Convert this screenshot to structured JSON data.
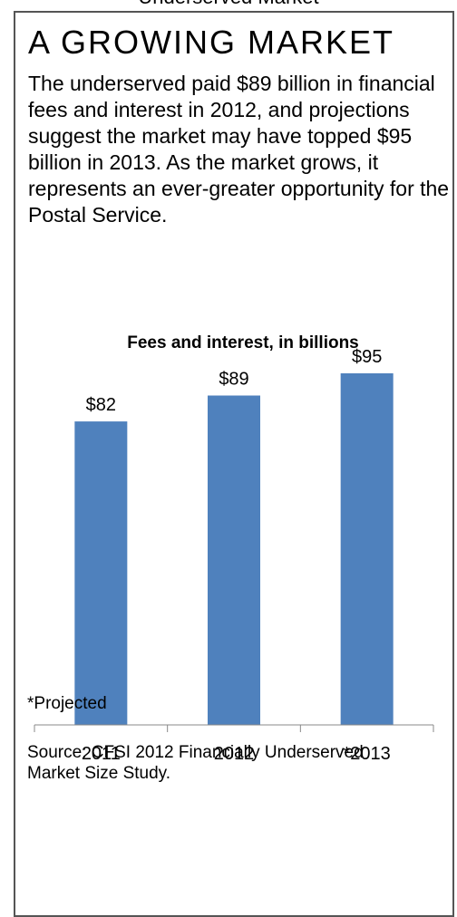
{
  "top_cut_text": "Underserved Market",
  "headline": "A GROWING MARKET",
  "body": "The underserved paid $89 billion in financial fees and interest in 2012, and projections suggest the market may have topped $95 billion in 2013. As the market grows, it represents an ever-greater opportunity for the Postal Service.",
  "footnote": "*Projected",
  "source_label": "Source:",
  "source_text": "CFSI 2012  Financially Underserved Market Size Study.",
  "colors": {
    "bar": "#4F81BD",
    "border": "#555555",
    "axis": "#888888"
  },
  "chart_data": {
    "type": "bar",
    "title": "Fees and interest, in billions",
    "categories": [
      "2011",
      "2012",
      "*2013"
    ],
    "values": [
      82,
      89,
      95
    ],
    "data_labels": [
      "$82",
      "$89",
      "$95"
    ],
    "ylim": [
      0,
      95
    ],
    "xlabel": "",
    "ylabel": "",
    "grid": false,
    "legend": "none"
  }
}
